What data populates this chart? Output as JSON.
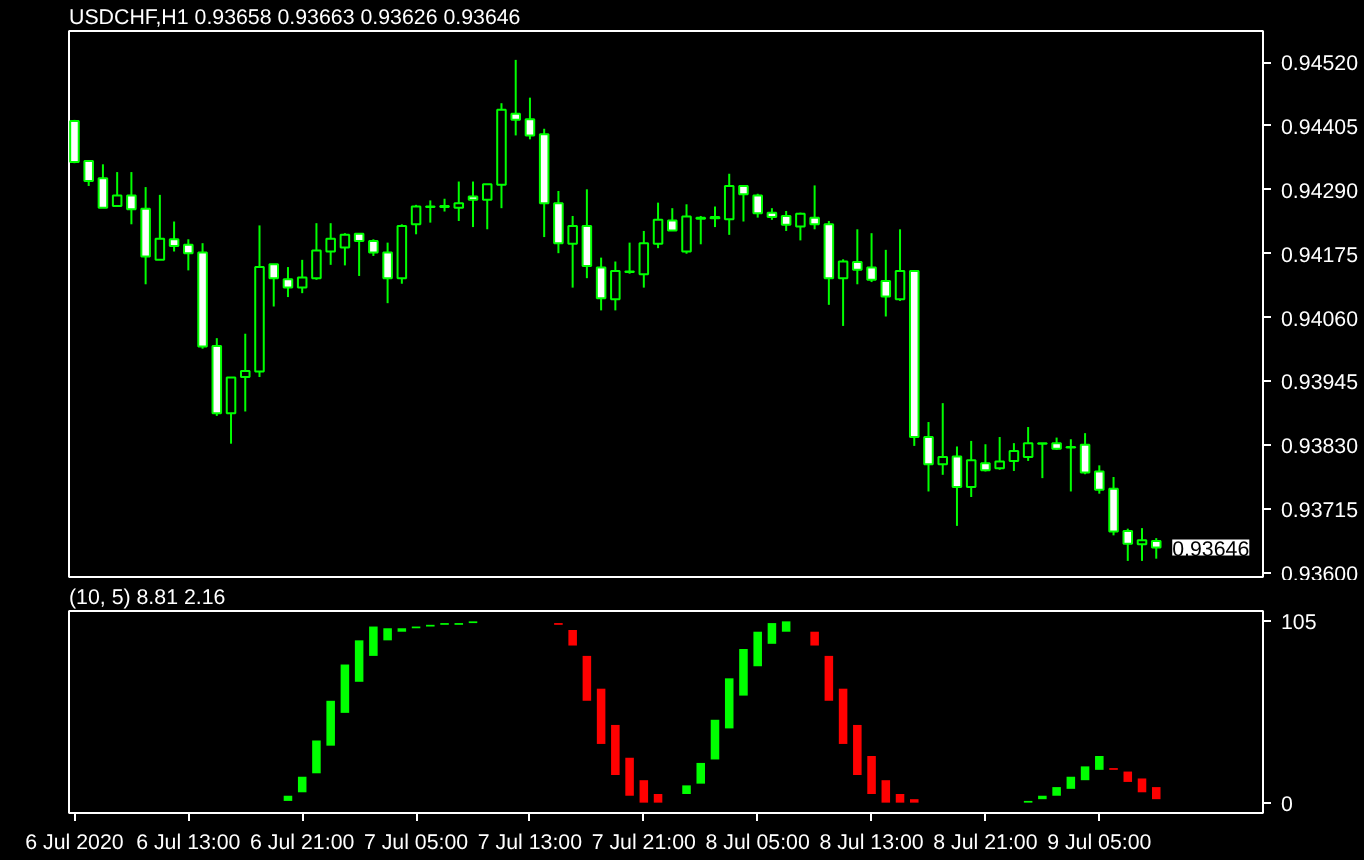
{
  "chart_data": [
    {
      "type": "candlestick",
      "title": "USDCHF,H1  0.93658 0.93663 0.93626 0.93646",
      "x": [
        "2020-07-06T05:00",
        "2020-07-06T06:00",
        "2020-07-06T07:00",
        "2020-07-06T08:00",
        "2020-07-06T09:00",
        "2020-07-06T10:00",
        "2020-07-06T11:00",
        "2020-07-06T12:00",
        "2020-07-06T13:00",
        "2020-07-06T14:00",
        "2020-07-06T15:00",
        "2020-07-06T16:00",
        "2020-07-06T17:00",
        "2020-07-06T18:00",
        "2020-07-06T19:00",
        "2020-07-06T20:00",
        "2020-07-06T21:00",
        "2020-07-06T22:00",
        "2020-07-06T23:00",
        "2020-07-07T00:00",
        "2020-07-07T01:00",
        "2020-07-07T02:00",
        "2020-07-07T03:00",
        "2020-07-07T04:00",
        "2020-07-07T05:00",
        "2020-07-07T06:00",
        "2020-07-07T07:00",
        "2020-07-07T08:00",
        "2020-07-07T09:00",
        "2020-07-07T10:00",
        "2020-07-07T11:00",
        "2020-07-07T12:00",
        "2020-07-07T13:00",
        "2020-07-07T14:00",
        "2020-07-07T15:00",
        "2020-07-07T16:00",
        "2020-07-07T17:00",
        "2020-07-07T18:00",
        "2020-07-07T19:00",
        "2020-07-07T20:00",
        "2020-07-07T21:00",
        "2020-07-07T22:00",
        "2020-07-07T23:00",
        "2020-07-08T00:00",
        "2020-07-08T01:00",
        "2020-07-08T02:00",
        "2020-07-08T03:00",
        "2020-07-08T04:00",
        "2020-07-08T05:00",
        "2020-07-08T06:00",
        "2020-07-08T07:00",
        "2020-07-08T08:00",
        "2020-07-08T09:00",
        "2020-07-08T10:00",
        "2020-07-08T11:00",
        "2020-07-08T12:00",
        "2020-07-08T13:00",
        "2020-07-08T14:00",
        "2020-07-08T15:00",
        "2020-07-08T16:00",
        "2020-07-08T17:00",
        "2020-07-08T18:00",
        "2020-07-08T19:00",
        "2020-07-08T20:00",
        "2020-07-08T21:00",
        "2020-07-08T22:00",
        "2020-07-08T23:00",
        "2020-07-09T00:00",
        "2020-07-09T01:00",
        "2020-07-09T02:00",
        "2020-07-09T03:00",
        "2020-07-09T04:00",
        "2020-07-09T05:00",
        "2020-07-09T06:00",
        "2020-07-09T07:00",
        "2020-07-09T08:00",
        "2020-07-09T09:00"
      ],
      "ohlc": [
        [
          0.94414,
          0.94416,
          0.94338,
          0.9434
        ],
        [
          0.94342,
          0.94342,
          0.94297,
          0.94306
        ],
        [
          0.94311,
          0.94336,
          0.94258,
          0.94258
        ],
        [
          0.94261,
          0.94322,
          0.94261,
          0.9428
        ],
        [
          0.9428,
          0.94322,
          0.94228,
          0.94255
        ],
        [
          0.94256,
          0.94295,
          0.9412,
          0.9417
        ],
        [
          0.94164,
          0.94281,
          0.94164,
          0.94202
        ],
        [
          0.94201,
          0.94233,
          0.94179,
          0.94189
        ],
        [
          0.94191,
          0.94201,
          0.94145,
          0.94176
        ],
        [
          0.94177,
          0.94194,
          0.94004,
          0.94008
        ],
        [
          0.94009,
          0.94023,
          0.93883,
          0.93888
        ],
        [
          0.93888,
          0.93952,
          0.93833,
          0.93952
        ],
        [
          0.93953,
          0.94031,
          0.93891,
          0.93964
        ],
        [
          0.93963,
          0.94226,
          0.93953,
          0.94151
        ],
        [
          0.94156,
          0.94156,
          0.9408,
          0.94131
        ],
        [
          0.94129,
          0.94151,
          0.94097,
          0.94114
        ],
        [
          0.94114,
          0.94164,
          0.94104,
          0.94132
        ],
        [
          0.94131,
          0.9423,
          0.94128,
          0.94181
        ],
        [
          0.94179,
          0.9423,
          0.94155,
          0.94202
        ],
        [
          0.94186,
          0.94212,
          0.94154,
          0.94209
        ],
        [
          0.94211,
          0.94212,
          0.94135,
          0.94198
        ],
        [
          0.94198,
          0.94201,
          0.94171,
          0.94177
        ],
        [
          0.94177,
          0.94195,
          0.94086,
          0.94131
        ],
        [
          0.94131,
          0.94228,
          0.94121,
          0.94225
        ],
        [
          0.94228,
          0.94263,
          0.9421,
          0.9426
        ],
        [
          0.94259,
          0.94271,
          0.94231,
          0.9426
        ],
        [
          0.94259,
          0.94274,
          0.94251,
          0.94261
        ],
        [
          0.94258,
          0.94305,
          0.94234,
          0.94266
        ],
        [
          0.94278,
          0.94305,
          0.94223,
          0.94272
        ],
        [
          0.94272,
          0.943,
          0.94219,
          0.943
        ],
        [
          0.94299,
          0.94446,
          0.94257,
          0.94434
        ],
        [
          0.94427,
          0.94524,
          0.94388,
          0.94416
        ],
        [
          0.94417,
          0.94456,
          0.94381,
          0.94388
        ],
        [
          0.9439,
          0.944,
          0.94205,
          0.94266
        ],
        [
          0.94266,
          0.94288,
          0.94176,
          0.94194
        ],
        [
          0.94193,
          0.94243,
          0.94114,
          0.94225
        ],
        [
          0.94225,
          0.94291,
          0.94131,
          0.94153
        ],
        [
          0.9415,
          0.94168,
          0.94073,
          0.94095
        ],
        [
          0.94093,
          0.94161,
          0.94073,
          0.94144
        ],
        [
          0.94142,
          0.94195,
          0.94139,
          0.94143
        ],
        [
          0.94138,
          0.94216,
          0.94114,
          0.94194
        ],
        [
          0.94193,
          0.94267,
          0.94185,
          0.94236
        ],
        [
          0.94235,
          0.94257,
          0.94217,
          0.94217
        ],
        [
          0.94179,
          0.94264,
          0.94175,
          0.94242
        ],
        [
          0.94238,
          0.94243,
          0.94192,
          0.9424
        ],
        [
          0.94239,
          0.9426,
          0.94223,
          0.94241
        ],
        [
          0.94237,
          0.94319,
          0.94209,
          0.94297
        ],
        [
          0.94297,
          0.94297,
          0.94233,
          0.94282
        ],
        [
          0.9428,
          0.94283,
          0.9424,
          0.94248
        ],
        [
          0.94249,
          0.94257,
          0.94236,
          0.94241
        ],
        [
          0.94243,
          0.94252,
          0.94216,
          0.94227
        ],
        [
          0.94224,
          0.94249,
          0.94199,
          0.94247
        ],
        [
          0.9424,
          0.94298,
          0.94219,
          0.94228
        ],
        [
          0.94228,
          0.94234,
          0.94083,
          0.94131
        ],
        [
          0.94131,
          0.94165,
          0.94045,
          0.94161
        ],
        [
          0.9416,
          0.94219,
          0.9412,
          0.94146
        ],
        [
          0.9415,
          0.94212,
          0.94124,
          0.94128
        ],
        [
          0.94126,
          0.94182,
          0.94062,
          0.94098
        ],
        [
          0.94093,
          0.94219,
          0.9409,
          0.94144
        ],
        [
          0.94144,
          0.94144,
          0.93829,
          0.93845
        ],
        [
          0.93845,
          0.93872,
          0.93747,
          0.93796
        ],
        [
          0.93796,
          0.93906,
          0.93777,
          0.93809
        ],
        [
          0.9381,
          0.93828,
          0.93685,
          0.93755
        ],
        [
          0.93755,
          0.93838,
          0.93737,
          0.93803
        ],
        [
          0.93798,
          0.93832,
          0.93783,
          0.93785
        ],
        [
          0.93789,
          0.93845,
          0.93786,
          0.93801
        ],
        [
          0.93802,
          0.93834,
          0.93784,
          0.9382
        ],
        [
          0.93809,
          0.93863,
          0.93802,
          0.93834
        ],
        [
          0.93833,
          0.93834,
          0.93771,
          0.93834
        ],
        [
          0.93834,
          0.93844,
          0.93822,
          0.93824
        ],
        [
          0.93827,
          0.93841,
          0.93747,
          0.93826
        ],
        [
          0.93831,
          0.93852,
          0.93778,
          0.93781
        ],
        [
          0.93783,
          0.93794,
          0.93743,
          0.9375
        ],
        [
          0.93752,
          0.93773,
          0.93668,
          0.93675
        ],
        [
          0.93676,
          0.9368,
          0.93622,
          0.93653
        ],
        [
          0.93652,
          0.93681,
          0.93622,
          0.93659
        ],
        [
          0.93658,
          0.93663,
          0.93626,
          0.93646
        ]
      ],
      "ylim": [
        0.93593,
        0.94576
      ],
      "yticks": [
        {
          "value": 0.9452,
          "label": "0.94520"
        },
        {
          "value": 0.94405,
          "label": "0.94405"
        },
        {
          "value": 0.9429,
          "label": "0.94290"
        },
        {
          "value": 0.94175,
          "label": "0.94175"
        },
        {
          "value": 0.9406,
          "label": "0.94060"
        },
        {
          "value": 0.93945,
          "label": "0.93945"
        },
        {
          "value": 0.9383,
          "label": "0.93830"
        },
        {
          "value": 0.93715,
          "label": "0.93715"
        },
        {
          "value": 0.936,
          "label": "0.93600"
        }
      ],
      "xlim": [
        "2020-07-06T04:37",
        "2020-07-09T16:30"
      ],
      "tick_labels": "y",
      "annotations": [
        {
          "text": "0.93646",
          "x": "2020-07-09T09:00",
          "y": 0.93646
        }
      ]
    },
    {
      "type": "bar",
      "title": "(10, 5)  8.81 2.16",
      "series": [
        {
          "color": "#00ff00",
          "x": [
            "2020-07-06T20:00",
            "2020-07-06T21:00",
            "2020-07-06T22:00",
            "2020-07-06T23:00",
            "2020-07-07T00:00",
            "2020-07-07T01:00",
            "2020-07-07T02:00",
            "2020-07-07T03:00",
            "2020-07-07T04:00",
            "2020-07-07T05:00",
            "2020-07-07T06:00",
            "2020-07-07T07:00",
            "2020-07-07T08:00",
            "2020-07-07T09:00",
            "2020-07-08T00:00",
            "2020-07-08T01:00",
            "2020-07-08T02:00",
            "2020-07-08T03:00",
            "2020-07-08T04:00",
            "2020-07-08T05:00",
            "2020-07-08T06:00",
            "2020-07-08T07:00",
            "2020-07-09T00:00",
            "2020-07-09T01:00",
            "2020-07-09T02:00",
            "2020-07-09T03:00",
            "2020-07-09T04:00",
            "2020-07-09T05:00"
          ],
          "base": [
            1,
            6,
            17,
            33,
            52,
            70,
            85,
            94,
            99,
            101,
            102,
            103,
            103,
            104,
            5,
            11,
            25,
            43,
            62,
            79,
            92,
            99,
            0,
            2,
            4,
            8,
            13,
            19
          ],
          "values": [
            3,
            9,
            19,
            26,
            28,
            24,
            17,
            7,
            2,
            1,
            1,
            1,
            1,
            1,
            5,
            12,
            23,
            29,
            27,
            20,
            12,
            6,
            1,
            2,
            5,
            7,
            8,
            8
          ]
        },
        {
          "color": "#ff0000",
          "x": [
            "2020-07-07T15:00",
            "2020-07-07T16:00",
            "2020-07-07T17:00",
            "2020-07-07T18:00",
            "2020-07-07T19:00",
            "2020-07-07T20:00",
            "2020-07-07T21:00",
            "2020-07-07T22:00",
            "2020-07-08T09:00",
            "2020-07-08T10:00",
            "2020-07-08T11:00",
            "2020-07-08T12:00",
            "2020-07-08T13:00",
            "2020-07-08T14:00",
            "2020-07-08T15:00",
            "2020-07-08T16:00",
            "2020-07-09T06:00",
            "2020-07-09T07:00",
            "2020-07-09T08:00",
            "2020-07-09T09:00"
          ],
          "base": [
            103,
            91,
            59,
            34,
            16,
            4,
            0,
            0,
            91,
            59,
            34,
            16,
            5,
            0,
            0,
            0,
            19,
            12,
            6,
            2
          ],
          "values": [
            1,
            9,
            26,
            32,
            29,
            22,
            13,
            5,
            8,
            26,
            32,
            29,
            22,
            13,
            5,
            2,
            1,
            6,
            8,
            7
          ]
        }
      ],
      "xlim": [
        "2020-07-06T04:37",
        "2020-07-09T16:30"
      ],
      "xticks": [
        {
          "value": "2020-07-06T05:00",
          "label": "6 Jul 2020"
        },
        {
          "value": "2020-07-06T13:00",
          "label": "6 Jul 13:00"
        },
        {
          "value": "2020-07-06T21:00",
          "label": "6 Jul 21:00"
        },
        {
          "value": "2020-07-07T05:00",
          "label": "7 Jul 05:00"
        },
        {
          "value": "2020-07-07T13:00",
          "label": "7 Jul 13:00"
        },
        {
          "value": "2020-07-07T21:00",
          "label": "7 Jul 21:00"
        },
        {
          "value": "2020-07-08T05:00",
          "label": "8 Jul 05:00"
        },
        {
          "value": "2020-07-08T13:00",
          "label": "8 Jul 13:00"
        },
        {
          "value": "2020-07-08T21:00",
          "label": "8 Jul 21:00"
        },
        {
          "value": "2020-07-09T05:00",
          "label": "9 Jul 05:00"
        }
      ],
      "ylim": [
        -6,
        111
      ],
      "yticks": [
        0,
        105
      ]
    }
  ]
}
